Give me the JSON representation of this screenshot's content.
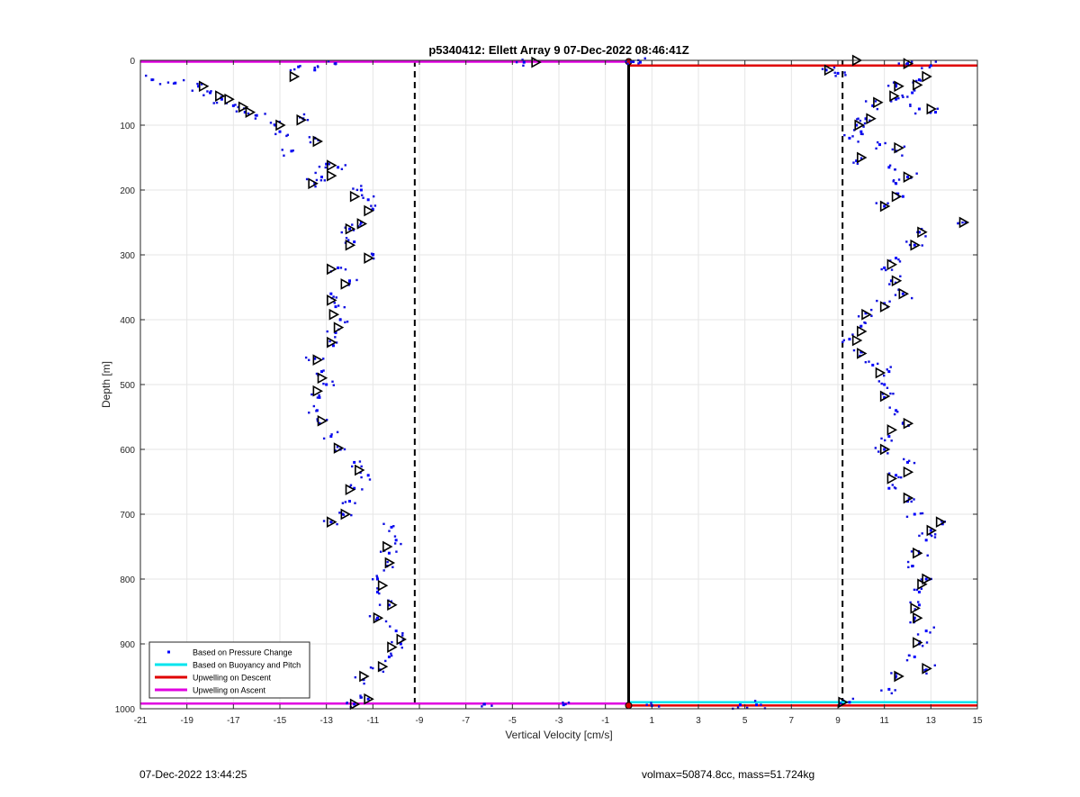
{
  "chart_data": {
    "type": "scatter",
    "title": "p5340412: Ellett Array 9 07-Dec-2022 08:46:41Z",
    "xlabel": "Vertical Velocity [cm/s]",
    "ylabel": "Depth [m]",
    "xlim": [
      -21,
      15
    ],
    "ylim": [
      0,
      1000
    ],
    "y_reversed": true,
    "grid": true,
    "x_ticks": [
      -21,
      -19,
      -17,
      -15,
      -13,
      -11,
      -9,
      -7,
      -5,
      -3,
      -1,
      1,
      3,
      5,
      7,
      9,
      11,
      13,
      15
    ],
    "y_ticks": [
      0,
      100,
      200,
      300,
      400,
      500,
      600,
      700,
      800,
      900,
      1000
    ],
    "legend_position": "bottom-left",
    "legend": [
      {
        "label": "Based on Pressure Change",
        "color": "#0000ff",
        "marker": "dot"
      },
      {
        "label": "Based on Buoyancy and Pitch",
        "color": "#00e5ee",
        "marker": "line"
      },
      {
        "label": "Upwelling on Descent",
        "color": "#e00000",
        "marker": "line"
      },
      {
        "label": "Upwelling on Ascent",
        "color": "#e000e0",
        "marker": "line"
      }
    ],
    "reference_lines": {
      "zero_line": {
        "x": 0,
        "style": "solid",
        "color": "#000000"
      },
      "dashed_lines": [
        {
          "x": -9.2
        },
        {
          "x": 9.2
        }
      ],
      "upwelling_ascent": [
        {
          "y": 2,
          "from_x": -21,
          "to_x": 0
        },
        {
          "y": 992,
          "from_x": -21,
          "to_x": 0
        }
      ],
      "upwelling_descent": [
        {
          "y": 8,
          "from_x": 0,
          "to_x": 15
        },
        {
          "y": 995,
          "from_x": 0,
          "to_x": 15
        }
      ],
      "buoyancy_pitch": [
        {
          "y": 990,
          "from_x": 0,
          "to_x": 15
        }
      ]
    },
    "series": [
      {
        "name": "Based on Pressure Change (descent)",
        "points": [
          [
            -12.6,
            5
          ],
          [
            -14.2,
            10
          ],
          [
            -13.5,
            15
          ],
          [
            -20.5,
            30
          ],
          [
            -19.5,
            35
          ],
          [
            -18.5,
            40
          ],
          [
            -18.0,
            50
          ],
          [
            -17.5,
            60
          ],
          [
            -17.0,
            70
          ],
          [
            -16.5,
            80
          ],
          [
            -16.0,
            85
          ],
          [
            -15.2,
            100
          ],
          [
            -15.0,
            110
          ],
          [
            -14.0,
            90
          ],
          [
            -13.5,
            120
          ],
          [
            -14.5,
            140
          ],
          [
            -13.0,
            160
          ],
          [
            -12.5,
            165
          ],
          [
            -13.2,
            180
          ],
          [
            -13.5,
            190
          ],
          [
            -11.5,
            200
          ],
          [
            -11.2,
            215
          ],
          [
            -11.0,
            230
          ],
          [
            -11.5,
            250
          ],
          [
            -12.0,
            260
          ],
          [
            -11.8,
            280
          ],
          [
            -11.0,
            300
          ],
          [
            -12.5,
            320
          ],
          [
            -12.0,
            340
          ],
          [
            -12.8,
            360
          ],
          [
            -12.6,
            380
          ],
          [
            -12.4,
            400
          ],
          [
            -12.6,
            420
          ],
          [
            -12.7,
            440
          ],
          [
            -13.5,
            460
          ],
          [
            -13.2,
            480
          ],
          [
            -13.0,
            500
          ],
          [
            -13.3,
            520
          ],
          [
            -13.4,
            540
          ],
          [
            -13.3,
            560
          ],
          [
            -12.8,
            580
          ],
          [
            -12.4,
            600
          ],
          [
            -11.8,
            620
          ],
          [
            -11.2,
            640
          ],
          [
            -11.8,
            660
          ],
          [
            -12.0,
            680
          ],
          [
            -12.3,
            700
          ],
          [
            -12.8,
            712
          ],
          [
            -10.2,
            720
          ],
          [
            -10.0,
            740
          ],
          [
            -10.3,
            760
          ],
          [
            -10.4,
            780
          ],
          [
            -10.8,
            800
          ],
          [
            -10.8,
            820
          ],
          [
            -10.3,
            840
          ],
          [
            -10.8,
            860
          ],
          [
            -10.0,
            880
          ],
          [
            -9.8,
            900
          ],
          [
            -10.3,
            920
          ],
          [
            -10.7,
            940
          ],
          [
            -11.4,
            955
          ],
          [
            -11.2,
            985
          ],
          [
            -11.8,
            993
          ],
          [
            -6.2,
            993
          ],
          [
            -2.8,
            994
          ],
          [
            -4.5,
            3
          ]
        ]
      },
      {
        "name": "Based on Pressure Change (ascent)",
        "points": [
          [
            0.2,
            2
          ],
          [
            0.5,
            3
          ],
          [
            12.0,
            5
          ],
          [
            13.0,
            8
          ],
          [
            8.5,
            15
          ],
          [
            9.0,
            20
          ],
          [
            12.5,
            30
          ],
          [
            11.5,
            40
          ],
          [
            12.2,
            50
          ],
          [
            11.5,
            60
          ],
          [
            10.5,
            70
          ],
          [
            12.5,
            75
          ],
          [
            13.2,
            80
          ],
          [
            10.2,
            90
          ],
          [
            9.8,
            100
          ],
          [
            10.0,
            110
          ],
          [
            9.5,
            120
          ],
          [
            10.8,
            130
          ],
          [
            11.5,
            140
          ],
          [
            9.8,
            155
          ],
          [
            11.2,
            165
          ],
          [
            12.0,
            180
          ],
          [
            11.5,
            190
          ],
          [
            11.8,
            210
          ],
          [
            11.0,
            225
          ],
          [
            14.5,
            250
          ],
          [
            12.5,
            265
          ],
          [
            12.3,
            285
          ],
          [
            11.5,
            305
          ],
          [
            11.0,
            320
          ],
          [
            11.3,
            340
          ],
          [
            11.8,
            360
          ],
          [
            11.0,
            375
          ],
          [
            10.2,
            390
          ],
          [
            10.0,
            410
          ],
          [
            9.5,
            430
          ],
          [
            10.0,
            450
          ],
          [
            10.5,
            470
          ],
          [
            11.2,
            480
          ],
          [
            11.0,
            500
          ],
          [
            11.0,
            520
          ],
          [
            11.5,
            540
          ],
          [
            11.8,
            560
          ],
          [
            11.2,
            580
          ],
          [
            11.0,
            600
          ],
          [
            12.0,
            620
          ],
          [
            11.5,
            640
          ],
          [
            11.2,
            660
          ],
          [
            12.0,
            680
          ],
          [
            12.3,
            700
          ],
          [
            13.5,
            715
          ],
          [
            13.0,
            725
          ],
          [
            12.8,
            740
          ],
          [
            12.5,
            760
          ],
          [
            12.2,
            780
          ],
          [
            12.8,
            800
          ],
          [
            12.5,
            820
          ],
          [
            12.5,
            840
          ],
          [
            12.3,
            860
          ],
          [
            12.8,
            880
          ],
          [
            12.5,
            900
          ],
          [
            12.3,
            920
          ],
          [
            12.8,
            940
          ],
          [
            11.5,
            950
          ],
          [
            11.2,
            970
          ],
          [
            9.5,
            990
          ],
          [
            5.5,
            994
          ],
          [
            4.8,
            994
          ],
          [
            1.0,
            995
          ]
        ]
      }
    ],
    "triangle_markers": [
      [
        -4.0,
        3
      ],
      [
        -14.4,
        25
      ],
      [
        -18.3,
        40
      ],
      [
        -17.6,
        55
      ],
      [
        -17.2,
        60
      ],
      [
        -16.6,
        72
      ],
      [
        -16.3,
        80
      ],
      [
        -15.0,
        100
      ],
      [
        -14.1,
        92
      ],
      [
        -13.4,
        125
      ],
      [
        -12.8,
        162
      ],
      [
        -12.8,
        178
      ],
      [
        -13.6,
        190
      ],
      [
        -11.8,
        210
      ],
      [
        -11.2,
        232
      ],
      [
        -11.5,
        252
      ],
      [
        -12.0,
        260
      ],
      [
        -12.0,
        285
      ],
      [
        -11.2,
        305
      ],
      [
        -12.8,
        322
      ],
      [
        -12.2,
        345
      ],
      [
        -12.8,
        370
      ],
      [
        -12.7,
        392
      ],
      [
        -12.5,
        412
      ],
      [
        -12.8,
        435
      ],
      [
        -13.4,
        462
      ],
      [
        -13.2,
        490
      ],
      [
        -13.4,
        510
      ],
      [
        -13.2,
        556
      ],
      [
        -12.5,
        598
      ],
      [
        -11.6,
        632
      ],
      [
        -12.0,
        662
      ],
      [
        -12.2,
        700
      ],
      [
        -12.8,
        712
      ],
      [
        -10.4,
        750
      ],
      [
        -10.3,
        775
      ],
      [
        -10.6,
        810
      ],
      [
        -10.2,
        840
      ],
      [
        -10.8,
        860
      ],
      [
        -9.8,
        893
      ],
      [
        -10.2,
        905
      ],
      [
        -10.6,
        935
      ],
      [
        -11.4,
        950
      ],
      [
        -11.2,
        985
      ],
      [
        -11.8,
        993
      ],
      [
        9.8,
        0
      ],
      [
        8.6,
        15
      ],
      [
        12.0,
        5
      ],
      [
        12.8,
        25
      ],
      [
        12.4,
        38
      ],
      [
        11.6,
        40
      ],
      [
        13.0,
        75
      ],
      [
        11.4,
        55
      ],
      [
        10.7,
        65
      ],
      [
        10.4,
        90
      ],
      [
        9.9,
        100
      ],
      [
        11.6,
        135
      ],
      [
        10.0,
        150
      ],
      [
        12.0,
        180
      ],
      [
        11.5,
        210
      ],
      [
        11.0,
        225
      ],
      [
        14.4,
        250
      ],
      [
        12.6,
        265
      ],
      [
        12.3,
        285
      ],
      [
        11.3,
        315
      ],
      [
        11.5,
        340
      ],
      [
        11.8,
        360
      ],
      [
        11.0,
        380
      ],
      [
        10.2,
        392
      ],
      [
        10.0,
        418
      ],
      [
        9.8,
        432
      ],
      [
        10.0,
        452
      ],
      [
        10.8,
        482
      ],
      [
        11.0,
        518
      ],
      [
        11.3,
        570
      ],
      [
        12.0,
        560
      ],
      [
        11.0,
        600
      ],
      [
        12.0,
        635
      ],
      [
        11.3,
        645
      ],
      [
        12.0,
        675
      ],
      [
        13.4,
        712
      ],
      [
        13.0,
        725
      ],
      [
        12.4,
        760
      ],
      [
        12.8,
        800
      ],
      [
        12.6,
        808
      ],
      [
        12.3,
        845
      ],
      [
        12.4,
        860
      ],
      [
        12.4,
        898
      ],
      [
        12.8,
        938
      ],
      [
        11.6,
        950
      ],
      [
        9.2,
        990
      ]
    ]
  },
  "footer": {
    "left": "07-Dec-2022 13:44:25",
    "right": "volmax=50874.8cc, mass=51.724kg"
  }
}
